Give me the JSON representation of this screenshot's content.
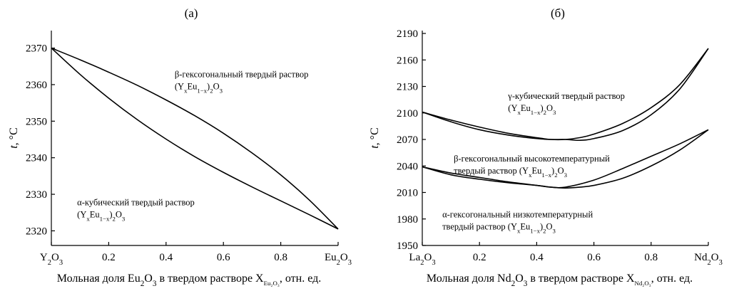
{
  "chart_data": [
    {
      "type": "line",
      "panel_label": "(а)",
      "ylabel": "t, °C",
      "xlabel": {
        "pre": "Мольная доля Eu",
        "sub1": "2",
        "mid1": "O",
        "sub2": "3",
        "mid2": " в твердом растворе X",
        "subX": "Eu₂O₃",
        "post": ", отн. ед."
      },
      "xlim": [
        0,
        1
      ],
      "ylim": [
        2316,
        2374
      ],
      "x_ticks": [
        {
          "value": 0,
          "label": "",
          "formula": [
            "Y",
            "2",
            "O",
            "3"
          ]
        },
        {
          "value": 0.2,
          "label": "0.2"
        },
        {
          "value": 0.4,
          "label": "0.4"
        },
        {
          "value": 0.6,
          "label": "0.6"
        },
        {
          "value": 0.8,
          "label": "0.8"
        },
        {
          "value": 1,
          "label": "",
          "formula": [
            "Eu",
            "2",
            "O",
            "3"
          ]
        }
      ],
      "y_ticks": [
        2320,
        2330,
        2340,
        2350,
        2360,
        2370
      ],
      "series": [
        {
          "x": [
            0,
            0.1,
            0.2,
            0.3,
            0.4,
            0.5,
            0.6,
            0.7,
            0.8,
            0.9,
            1.0
          ],
          "y": [
            2370,
            2366.8,
            2363.4,
            2359.8,
            2355.8,
            2351.5,
            2346.7,
            2341.3,
            2335.3,
            2328.4,
            2320.5
          ]
        },
        {
          "x": [
            0,
            0.1,
            0.2,
            0.3,
            0.4,
            0.5,
            0.6,
            0.7,
            0.8,
            0.9,
            1.0
          ],
          "y": [
            2370,
            2362.8,
            2356.3,
            2350.4,
            2345.1,
            2340.3,
            2336.0,
            2332.0,
            2328.2,
            2324.4,
            2320.5
          ]
        }
      ],
      "annotations": [
        {
          "id": "beta",
          "line1": "β-гексогональный твердый раствор",
          "line2": [
            "(Y",
            "x",
            "Eu",
            "1−x",
            ")",
            "2",
            "O",
            "3"
          ],
          "x": 0.43,
          "y": 2362
        },
        {
          "id": "alpha",
          "line1": "α-кубический твердый раствор",
          "line2": [
            "(Y",
            "x",
            "Eu",
            "1−x",
            ")",
            "2",
            "O",
            "3"
          ],
          "x": 0.09,
          "y": 2327
        }
      ]
    },
    {
      "type": "line",
      "panel_label": "(б)",
      "ylabel": "t, °C",
      "xlabel": {
        "pre": "Мольная доля Nd",
        "sub1": "2",
        "mid1": "O",
        "sub2": "3",
        "mid2": " в твердом растворе X",
        "subX": "Nd₂O₃",
        "post": ", отн. ед."
      },
      "xlim": [
        0,
        1
      ],
      "ylim": [
        1950,
        2190
      ],
      "x_ticks": [
        {
          "value": 0,
          "label": "",
          "formula": [
            "La",
            "2",
            "O",
            "3"
          ]
        },
        {
          "value": 0.2,
          "label": "0.2"
        },
        {
          "value": 0.4,
          "label": "0.4"
        },
        {
          "value": 0.6,
          "label": "0.6"
        },
        {
          "value": 0.8,
          "label": "0.8"
        },
        {
          "value": 1,
          "label": "",
          "formula": [
            "Nd",
            "2",
            "O",
            "3"
          ]
        }
      ],
      "y_ticks": [
        1950,
        1980,
        2010,
        2040,
        2070,
        2100,
        2130,
        2160,
        2190
      ],
      "series": [
        {
          "x": [
            0,
            0.1,
            0.2,
            0.3,
            0.4,
            0.45,
            0.5,
            0.55,
            0.6,
            0.7,
            0.8,
            0.9,
            1.0
          ],
          "y": [
            2101,
            2092,
            2084,
            2077,
            2072,
            2070,
            2070,
            2072,
            2076,
            2088,
            2106,
            2132,
            2173
          ]
        },
        {
          "x": [
            0,
            0.1,
            0.2,
            0.3,
            0.4,
            0.45,
            0.5,
            0.55,
            0.6,
            0.7,
            0.8,
            0.9,
            1.0
          ],
          "y": [
            2101,
            2090,
            2081,
            2075,
            2071,
            2070,
            2070,
            2069,
            2071,
            2080,
            2098,
            2127,
            2173
          ]
        },
        {
          "x": [
            0,
            0.1,
            0.2,
            0.3,
            0.4,
            0.45,
            0.5,
            0.6,
            0.7,
            0.8,
            0.9,
            1.0
          ],
          "y": [
            2039,
            2032,
            2027,
            2022,
            2018,
            2016,
            2016,
            2024,
            2037,
            2051,
            2065,
            2081
          ]
        },
        {
          "x": [
            0,
            0.1,
            0.2,
            0.3,
            0.4,
            0.45,
            0.5,
            0.55,
            0.6,
            0.7,
            0.8,
            0.9,
            1.0
          ],
          "y": [
            2039,
            2030,
            2025,
            2021,
            2018,
            2016,
            2015,
            2016,
            2018,
            2026,
            2040,
            2058,
            2081
          ]
        }
      ],
      "annotations": [
        {
          "id": "gamma",
          "line1": "γ-кубический твердый раствор",
          "line2": [
            "(Y",
            "x",
            "Eu",
            "1−x",
            ")",
            "2",
            "O",
            "3"
          ],
          "x": 0.3,
          "y": 2116
        },
        {
          "id": "beta",
          "line1": "β-гексогональный высокотемпературный",
          "line2": [
            "твердый раствор (Y",
            "x",
            "Eu",
            "1−x",
            ")",
            "2",
            "O",
            "3"
          ],
          "x": 0.11,
          "y": 2045
        },
        {
          "id": "alpha",
          "line1": "α-гексогональный низкотемпературный",
          "line2": [
            "твердый раствор (Y",
            "x",
            "Eu",
            "1−x",
            ")",
            "2",
            "O",
            "3"
          ],
          "x": 0.07,
          "y": 1982
        }
      ]
    }
  ]
}
